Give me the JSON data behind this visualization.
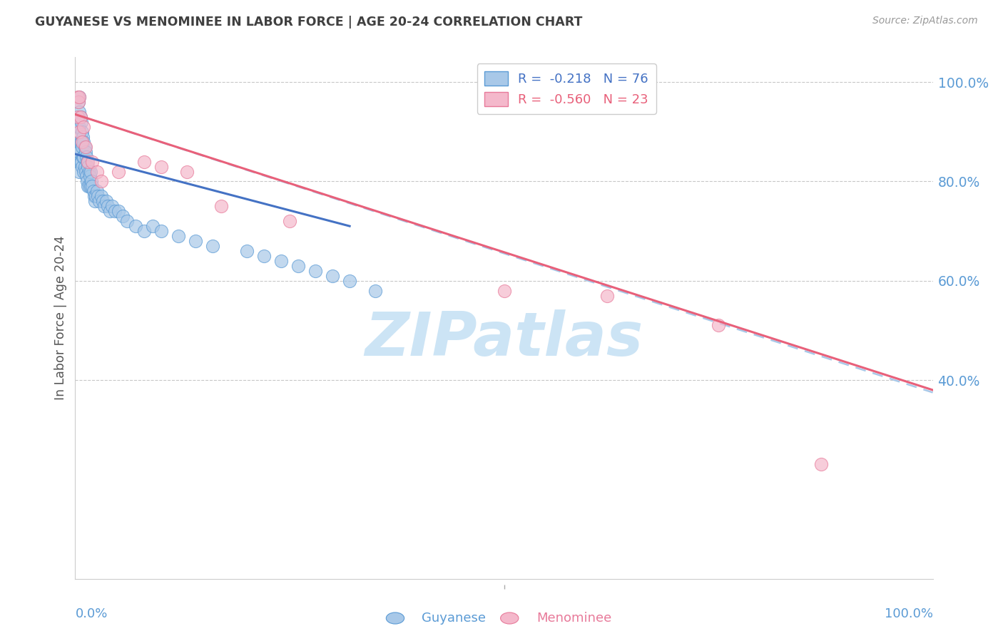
{
  "title": "GUYANESE VS MENOMINEE IN LABOR FORCE | AGE 20-24 CORRELATION CHART",
  "source": "Source: ZipAtlas.com",
  "ylabel": "In Labor Force | Age 20-24",
  "xlim": [
    0.0,
    1.0
  ],
  "ylim": [
    0.0,
    1.05
  ],
  "right_ytick_labels": [
    "40.0%",
    "60.0%",
    "80.0%",
    "100.0%"
  ],
  "right_ytick_values": [
    0.4,
    0.6,
    0.8,
    1.0
  ],
  "legend_blue_r": "-0.218",
  "legend_blue_n": "76",
  "legend_pink_r": "-0.560",
  "legend_pink_n": "23",
  "legend_blue_label": "Guyanese",
  "legend_pink_label": "Menominee",
  "blue_fill_color": "#a8c8e8",
  "blue_edge_color": "#5b9bd5",
  "pink_fill_color": "#f4b8cb",
  "pink_edge_color": "#e87a9a",
  "blue_line_color": "#4472c4",
  "pink_line_color": "#e8607a",
  "dashed_line_color": "#a8c8e8",
  "watermark_text": "ZIPatlas",
  "watermark_color": "#cce4f5",
  "title_color": "#404040",
  "axis_label_color": "#5b9bd5",
  "grid_color": "#c8c8c8",
  "background_color": "#ffffff",
  "guyanese_x": [
    0.003,
    0.003,
    0.004,
    0.004,
    0.004,
    0.005,
    0.005,
    0.005,
    0.005,
    0.005,
    0.005,
    0.005,
    0.006,
    0.006,
    0.006,
    0.007,
    0.007,
    0.007,
    0.008,
    0.008,
    0.008,
    0.009,
    0.009,
    0.01,
    0.01,
    0.01,
    0.011,
    0.011,
    0.012,
    0.012,
    0.013,
    0.013,
    0.014,
    0.014,
    0.015,
    0.015,
    0.016,
    0.016,
    0.017,
    0.018,
    0.018,
    0.019,
    0.02,
    0.021,
    0.022,
    0.023,
    0.024,
    0.025,
    0.026,
    0.028,
    0.03,
    0.032,
    0.034,
    0.036,
    0.038,
    0.04,
    0.043,
    0.046,
    0.05,
    0.055,
    0.06,
    0.07,
    0.08,
    0.09,
    0.1,
    0.12,
    0.14,
    0.16,
    0.2,
    0.22,
    0.24,
    0.26,
    0.28,
    0.3,
    0.32,
    0.35
  ],
  "guyanese_y": [
    0.93,
    0.87,
    0.96,
    0.91,
    0.86,
    0.97,
    0.94,
    0.91,
    0.88,
    0.86,
    0.84,
    0.82,
    0.93,
    0.88,
    0.84,
    0.92,
    0.88,
    0.84,
    0.9,
    0.87,
    0.83,
    0.89,
    0.85,
    0.88,
    0.85,
    0.82,
    0.87,
    0.83,
    0.86,
    0.82,
    0.85,
    0.81,
    0.84,
    0.8,
    0.83,
    0.79,
    0.82,
    0.79,
    0.81,
    0.82,
    0.79,
    0.8,
    0.79,
    0.78,
    0.77,
    0.76,
    0.77,
    0.78,
    0.77,
    0.76,
    0.77,
    0.76,
    0.75,
    0.76,
    0.75,
    0.74,
    0.75,
    0.74,
    0.74,
    0.73,
    0.72,
    0.71,
    0.7,
    0.71,
    0.7,
    0.69,
    0.68,
    0.67,
    0.66,
    0.65,
    0.64,
    0.63,
    0.62,
    0.61,
    0.6,
    0.58
  ],
  "menominee_x": [
    0.003,
    0.003,
    0.004,
    0.005,
    0.005,
    0.006,
    0.008,
    0.01,
    0.012,
    0.015,
    0.02,
    0.025,
    0.03,
    0.05,
    0.08,
    0.1,
    0.13,
    0.17,
    0.25,
    0.5,
    0.62,
    0.75,
    0.87
  ],
  "menominee_y": [
    0.97,
    0.93,
    0.96,
    0.97,
    0.9,
    0.93,
    0.88,
    0.91,
    0.87,
    0.84,
    0.84,
    0.82,
    0.8,
    0.82,
    0.84,
    0.83,
    0.82,
    0.75,
    0.72,
    0.58,
    0.57,
    0.51,
    0.23
  ],
  "blue_trend_x0": 0.0,
  "blue_trend_x1": 0.32,
  "blue_trend_y0": 0.855,
  "blue_trend_y1": 0.71,
  "pink_trend_x0": 0.0,
  "pink_trend_x1": 1.0,
  "pink_trend_y0": 0.935,
  "pink_trend_y1": 0.38,
  "dash_trend_x0": 0.0,
  "dash_trend_x1": 1.0,
  "dash_trend_y0": 0.935,
  "dash_trend_y1": 0.375
}
